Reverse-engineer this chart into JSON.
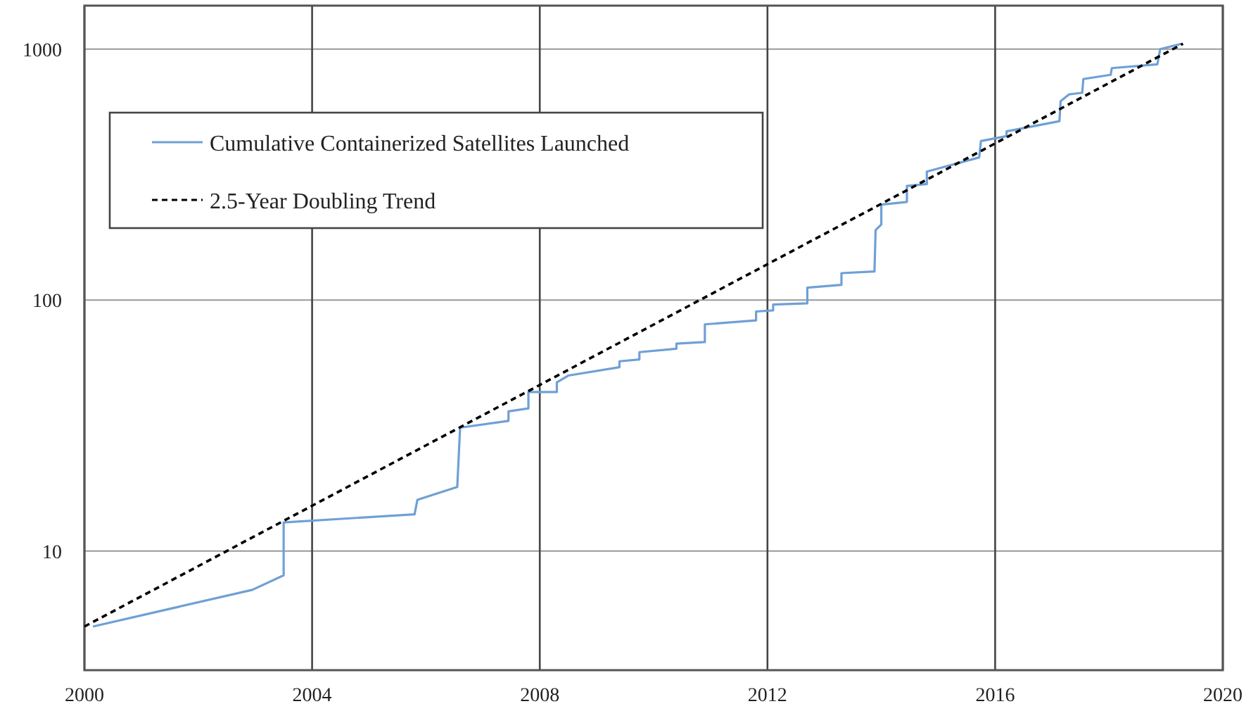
{
  "chart_data": {
    "type": "line",
    "log": "y",
    "grid": true,
    "legend": "top left",
    "xlim": [
      2000,
      2020
    ],
    "ylim": [
      3.35,
      1490
    ],
    "xticks": [
      2000,
      2004,
      2008,
      2012,
      2016,
      2020
    ],
    "yticks": [
      10,
      100,
      1000
    ],
    "series": [
      {
        "name": "Cumulative Containerized Satellites Launched",
        "color": "#6fa0d6",
        "line_style": "solid",
        "x": [
          2000.15,
          2002.95,
          2003.5,
          2003.5,
          2005.8,
          2005.85,
          2006.55,
          2006.6,
          2007.45,
          2007.45,
          2007.8,
          2007.8,
          2008.3,
          2008.3,
          2008.5,
          2009.4,
          2009.4,
          2009.75,
          2009.75,
          2010.4,
          2010.4,
          2010.9,
          2010.9,
          2011.8,
          2011.8,
          2012.1,
          2012.1,
          2012.7,
          2012.7,
          2013.3,
          2013.3,
          2013.88,
          2013.9,
          2014.0,
          2014.0,
          2014.45,
          2014.45,
          2014.8,
          2014.8,
          2015.72,
          2015.75,
          2016.2,
          2016.2,
          2017.13,
          2017.15,
          2017.3,
          2017.53,
          2017.55,
          2018.03,
          2018.05,
          2018.85,
          2018.9,
          2019.27
        ],
        "values": [
          5,
          7,
          8,
          13,
          14,
          16,
          18,
          31,
          33,
          36,
          37,
          43,
          43,
          47,
          50,
          54,
          57,
          58,
          62,
          64,
          67,
          68,
          80,
          83,
          90,
          91,
          96,
          97,
          112,
          115,
          128,
          130,
          190,
          200,
          240,
          246,
          285,
          290,
          325,
          370,
          430,
          450,
          470,
          516,
          620,
          660,
          670,
          760,
          790,
          840,
          870,
          1000,
          1050
        ]
      },
      {
        "name": "2.5-Year Doubling Trend",
        "color": "#000000",
        "line_style": "dashed",
        "x": [
          2000,
          2019.3
        ],
        "values": [
          5,
          1050
        ]
      }
    ]
  }
}
